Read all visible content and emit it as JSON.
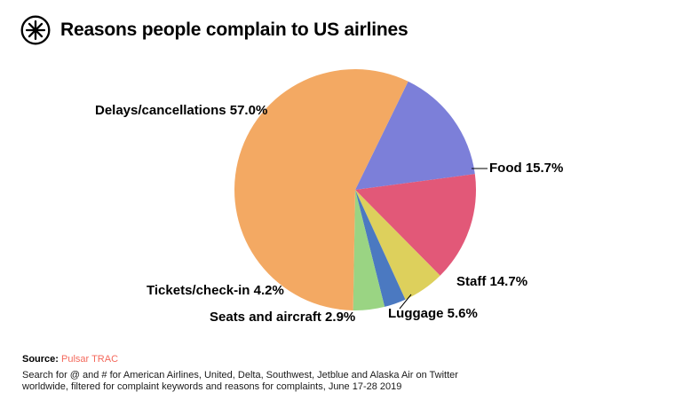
{
  "header": {
    "title": "Reasons people complain to US airlines",
    "logo_icon": "circled-asterisk-logo"
  },
  "chart_data": {
    "type": "pie",
    "title": "Reasons people complain to US airlines",
    "direction": "clockwise",
    "start_angle_deg": 26,
    "legend_position": "around",
    "slices": [
      {
        "label": "Food",
        "value": 15.7,
        "display": "Food 15.7%",
        "color": "#7c7fd9"
      },
      {
        "label": "Staff",
        "value": 14.7,
        "display": "Staff 14.7%",
        "color": "#e25878"
      },
      {
        "label": "Luggage",
        "value": 5.6,
        "display": "Luggage 5.6%",
        "color": "#ddd05c"
      },
      {
        "label": "Seats and aircraft",
        "value": 2.9,
        "display": "Seats and aircraft 2.9%",
        "color": "#4b79c1"
      },
      {
        "label": "Tickets/check-in",
        "value": 4.2,
        "display": "Tickets/check-in 4.2%",
        "color": "#9ad483"
      },
      {
        "label": "Delays/cancellations",
        "value": 57.0,
        "display": "Delays/cancellations 57.0%",
        "color": "#f3a963"
      }
    ]
  },
  "footer": {
    "source_label": "Source:",
    "source_name": "Pulsar TRAC",
    "description_line1": "Search for @ and # for American Airlines, United, Delta, Southwest, Jetblue and Alaska Air on Twitter",
    "description_line2": "worldwide, filtered for complaint keywords and reasons for complaints, June 17-28 2019"
  },
  "colors": {
    "background": "#ffffff",
    "source_accent": "#f4695c",
    "text": "#000000"
  }
}
